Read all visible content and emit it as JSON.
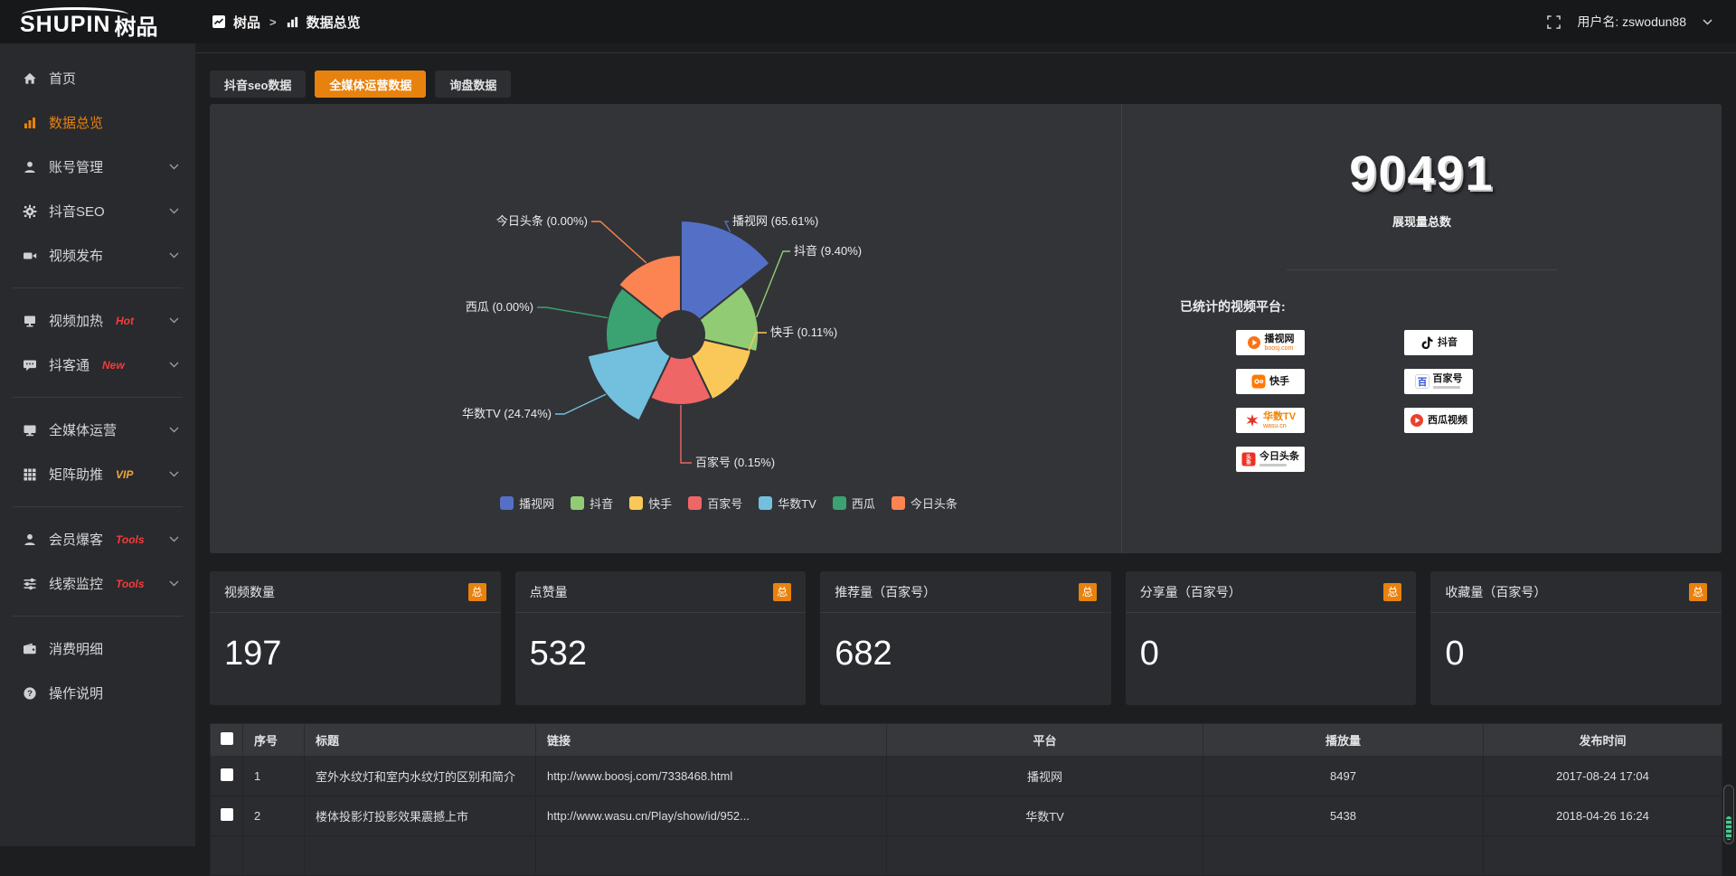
{
  "topbar": {
    "logo_latin": "SHUPIN",
    "logo_cn": "树品",
    "breadcrumb": {
      "item1": "树品",
      "separator": ">",
      "item2": "数据总览"
    },
    "username": "用户名: zswodun88"
  },
  "sidebar": {
    "items": [
      {
        "label": "首页",
        "icon": "home-icon"
      },
      {
        "label": "数据总览",
        "icon": "bar-chart-icon",
        "active": true
      },
      {
        "label": "账号管理",
        "icon": "user-icon",
        "expandable": true
      },
      {
        "label": "抖音SEO",
        "icon": "gear-icon",
        "expandable": true
      },
      {
        "label": "视频发布",
        "icon": "video-camera-icon",
        "expandable": true,
        "divider_after": true
      },
      {
        "label": "视频加热",
        "icon": "display-icon",
        "badge": "Hot",
        "badge_color": "#f53b3b",
        "expandable": true
      },
      {
        "label": "抖客通",
        "icon": "chat-icon",
        "badge": "New",
        "badge_color": "#f53b3b",
        "expandable": true,
        "divider_after": true
      },
      {
        "label": "全媒体运营",
        "icon": "monitor-icon",
        "expandable": true
      },
      {
        "label": "矩阵助推",
        "icon": "grid-icon",
        "badge": "VIP",
        "badge_color": "#efa63a",
        "expandable": true,
        "divider_after": true
      },
      {
        "label": "会员爆客",
        "icon": "person-icon",
        "badge": "Tools",
        "badge_color": "#f53b3b",
        "expandable": true
      },
      {
        "label": "线索监控",
        "icon": "sliders-icon",
        "badge": "Tools",
        "badge_color": "#f53b3b",
        "expandable": true,
        "divider_after": true
      },
      {
        "label": "消费明细",
        "icon": "wallet-icon"
      },
      {
        "label": "操作说明",
        "icon": "help-icon"
      }
    ]
  },
  "tabs": {
    "items": [
      {
        "label": "抖音seo数据",
        "active": false
      },
      {
        "label": "全媒体运营数据",
        "active": true
      },
      {
        "label": "询盘数据",
        "active": false
      }
    ]
  },
  "chart_data": {
    "type": "pie",
    "subtype": "nightingale-rose",
    "series": [
      {
        "name": "播视网",
        "pct": 65.61
      },
      {
        "name": "抖音",
        "pct": 9.4
      },
      {
        "name": "快手",
        "pct": 0.11
      },
      {
        "name": "百家号",
        "pct": 0.15
      },
      {
        "name": "华数TV",
        "pct": 24.74
      },
      {
        "name": "西瓜",
        "pct": 0.0
      },
      {
        "name": "今日头条",
        "pct": 0.0
      }
    ],
    "colors": [
      "#5470c6",
      "#91cc75",
      "#fac858",
      "#ee6666",
      "#73c0de",
      "#3ba272",
      "#fc8452"
    ],
    "label_format": "{name} ({pct}%)",
    "legend": [
      "播视网",
      "抖音",
      "快手",
      "百家号",
      "华数TV",
      "西瓜",
      "今日头条"
    ],
    "legend_position": "bottom"
  },
  "summary": {
    "total_value": "90491",
    "total_label": "展现量总数",
    "platforms_title": "已统计的视频平台:",
    "platforms": [
      {
        "name": "播视网",
        "sub": "boosj.com",
        "icon": "boosj-logo",
        "icon_color": "#f97316"
      },
      {
        "name": "抖音",
        "icon": "douyin-logo",
        "icon_color": "#111111"
      },
      {
        "name": "快手",
        "icon": "kuaishou-logo",
        "icon_color": "#ff7a00"
      },
      {
        "name": "百家号",
        "icon": "baijiahao-logo",
        "icon_color": "#2e4fd8",
        "sub_bar": true
      },
      {
        "name": "华数TV",
        "sub": "wasu.cn",
        "icon": "wasu-logo",
        "icon_color": "#e23227",
        "name_color": "#f08300"
      },
      {
        "name": "西瓜视频",
        "icon": "xigua-logo",
        "icon_color": "#e8432d"
      },
      {
        "name": "今日头条",
        "icon": "toutiao-logo",
        "icon_color": "#ed3124",
        "sub_bar": true
      }
    ]
  },
  "stat_cards": [
    {
      "title": "视频数量",
      "badge": "总",
      "value": "197"
    },
    {
      "title": "点赞量",
      "badge": "总",
      "value": "532"
    },
    {
      "title": "推荐量（百家号）",
      "badge": "总",
      "value": "682"
    },
    {
      "title": "分享量（百家号）",
      "badge": "总",
      "value": "0"
    },
    {
      "title": "收藏量（百家号）",
      "badge": "总",
      "value": "0"
    }
  ],
  "table": {
    "columns": [
      "",
      "序号",
      "标题",
      "链接",
      "平台",
      "播放量",
      "发布时间"
    ],
    "rows": [
      {
        "index": "1",
        "title": "室外水纹灯和室内水纹灯的区别和简介",
        "link": "http://www.boosj.com/7338468.html",
        "platform": "播视网",
        "plays": "8497",
        "published": "2017-08-24 17:04"
      },
      {
        "index": "2",
        "title": "楼体投影灯投影效果震撼上市",
        "link": "http://www.wasu.cn/Play/show/id/952...",
        "platform": "华数TV",
        "plays": "5438",
        "published": "2018-04-26 16:24"
      }
    ]
  },
  "accent_color": "#e8820e"
}
